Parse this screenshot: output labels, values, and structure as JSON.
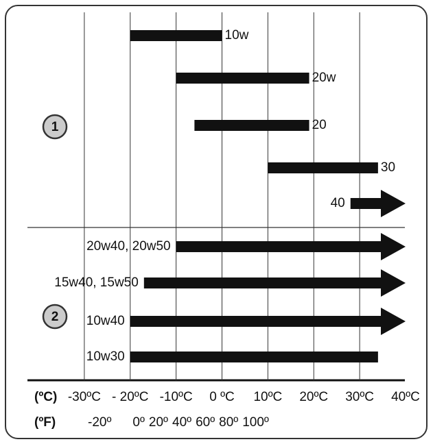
{
  "chart_data": {
    "type": "range-bar",
    "xlim": [
      -40,
      40
    ],
    "xticks": [
      {
        "value": -30,
        "label": "-30ºC"
      },
      {
        "value": -20,
        "label": "- 20ºC"
      },
      {
        "value": -10,
        "label": "-10ºC"
      },
      {
        "value": 0,
        "label": "0 ºC"
      },
      {
        "value": 10,
        "label": "10ºC"
      },
      {
        "value": 20,
        "label": "20ºC"
      },
      {
        "value": 30,
        "label": "30ºC"
      },
      {
        "value": 40,
        "label": "40ºC"
      }
    ],
    "grid": true,
    "color": "#111111",
    "celsius_unit": "(ºC)",
    "fahrenheit_unit": "(ºF)",
    "fahrenheit_labels": [
      "-20º",
      "0º",
      "20º",
      "40º",
      "60º",
      "80º",
      "100º"
    ],
    "groups": [
      {
        "label": "1",
        "label_side": "right",
        "bars": [
          {
            "name": "10w",
            "start": -20,
            "end": 0
          },
          {
            "name": "20w",
            "start": -10,
            "end": 19
          },
          {
            "name": "20",
            "start": -6,
            "end": 19
          },
          {
            "name": "30",
            "start": 10,
            "end": 34
          },
          {
            "name": "40",
            "start": 28,
            "arrow": true
          }
        ]
      },
      {
        "label": "2",
        "label_side": "left",
        "bars": [
          {
            "name": "20w40, 20w50",
            "start": -10,
            "arrow": true
          },
          {
            "name": "15w40, 15w50",
            "start": -17,
            "arrow": true
          },
          {
            "name": "10w40",
            "start": -20,
            "arrow": true
          },
          {
            "name": "10w30",
            "start": -20,
            "end": 34
          }
        ]
      }
    ]
  }
}
